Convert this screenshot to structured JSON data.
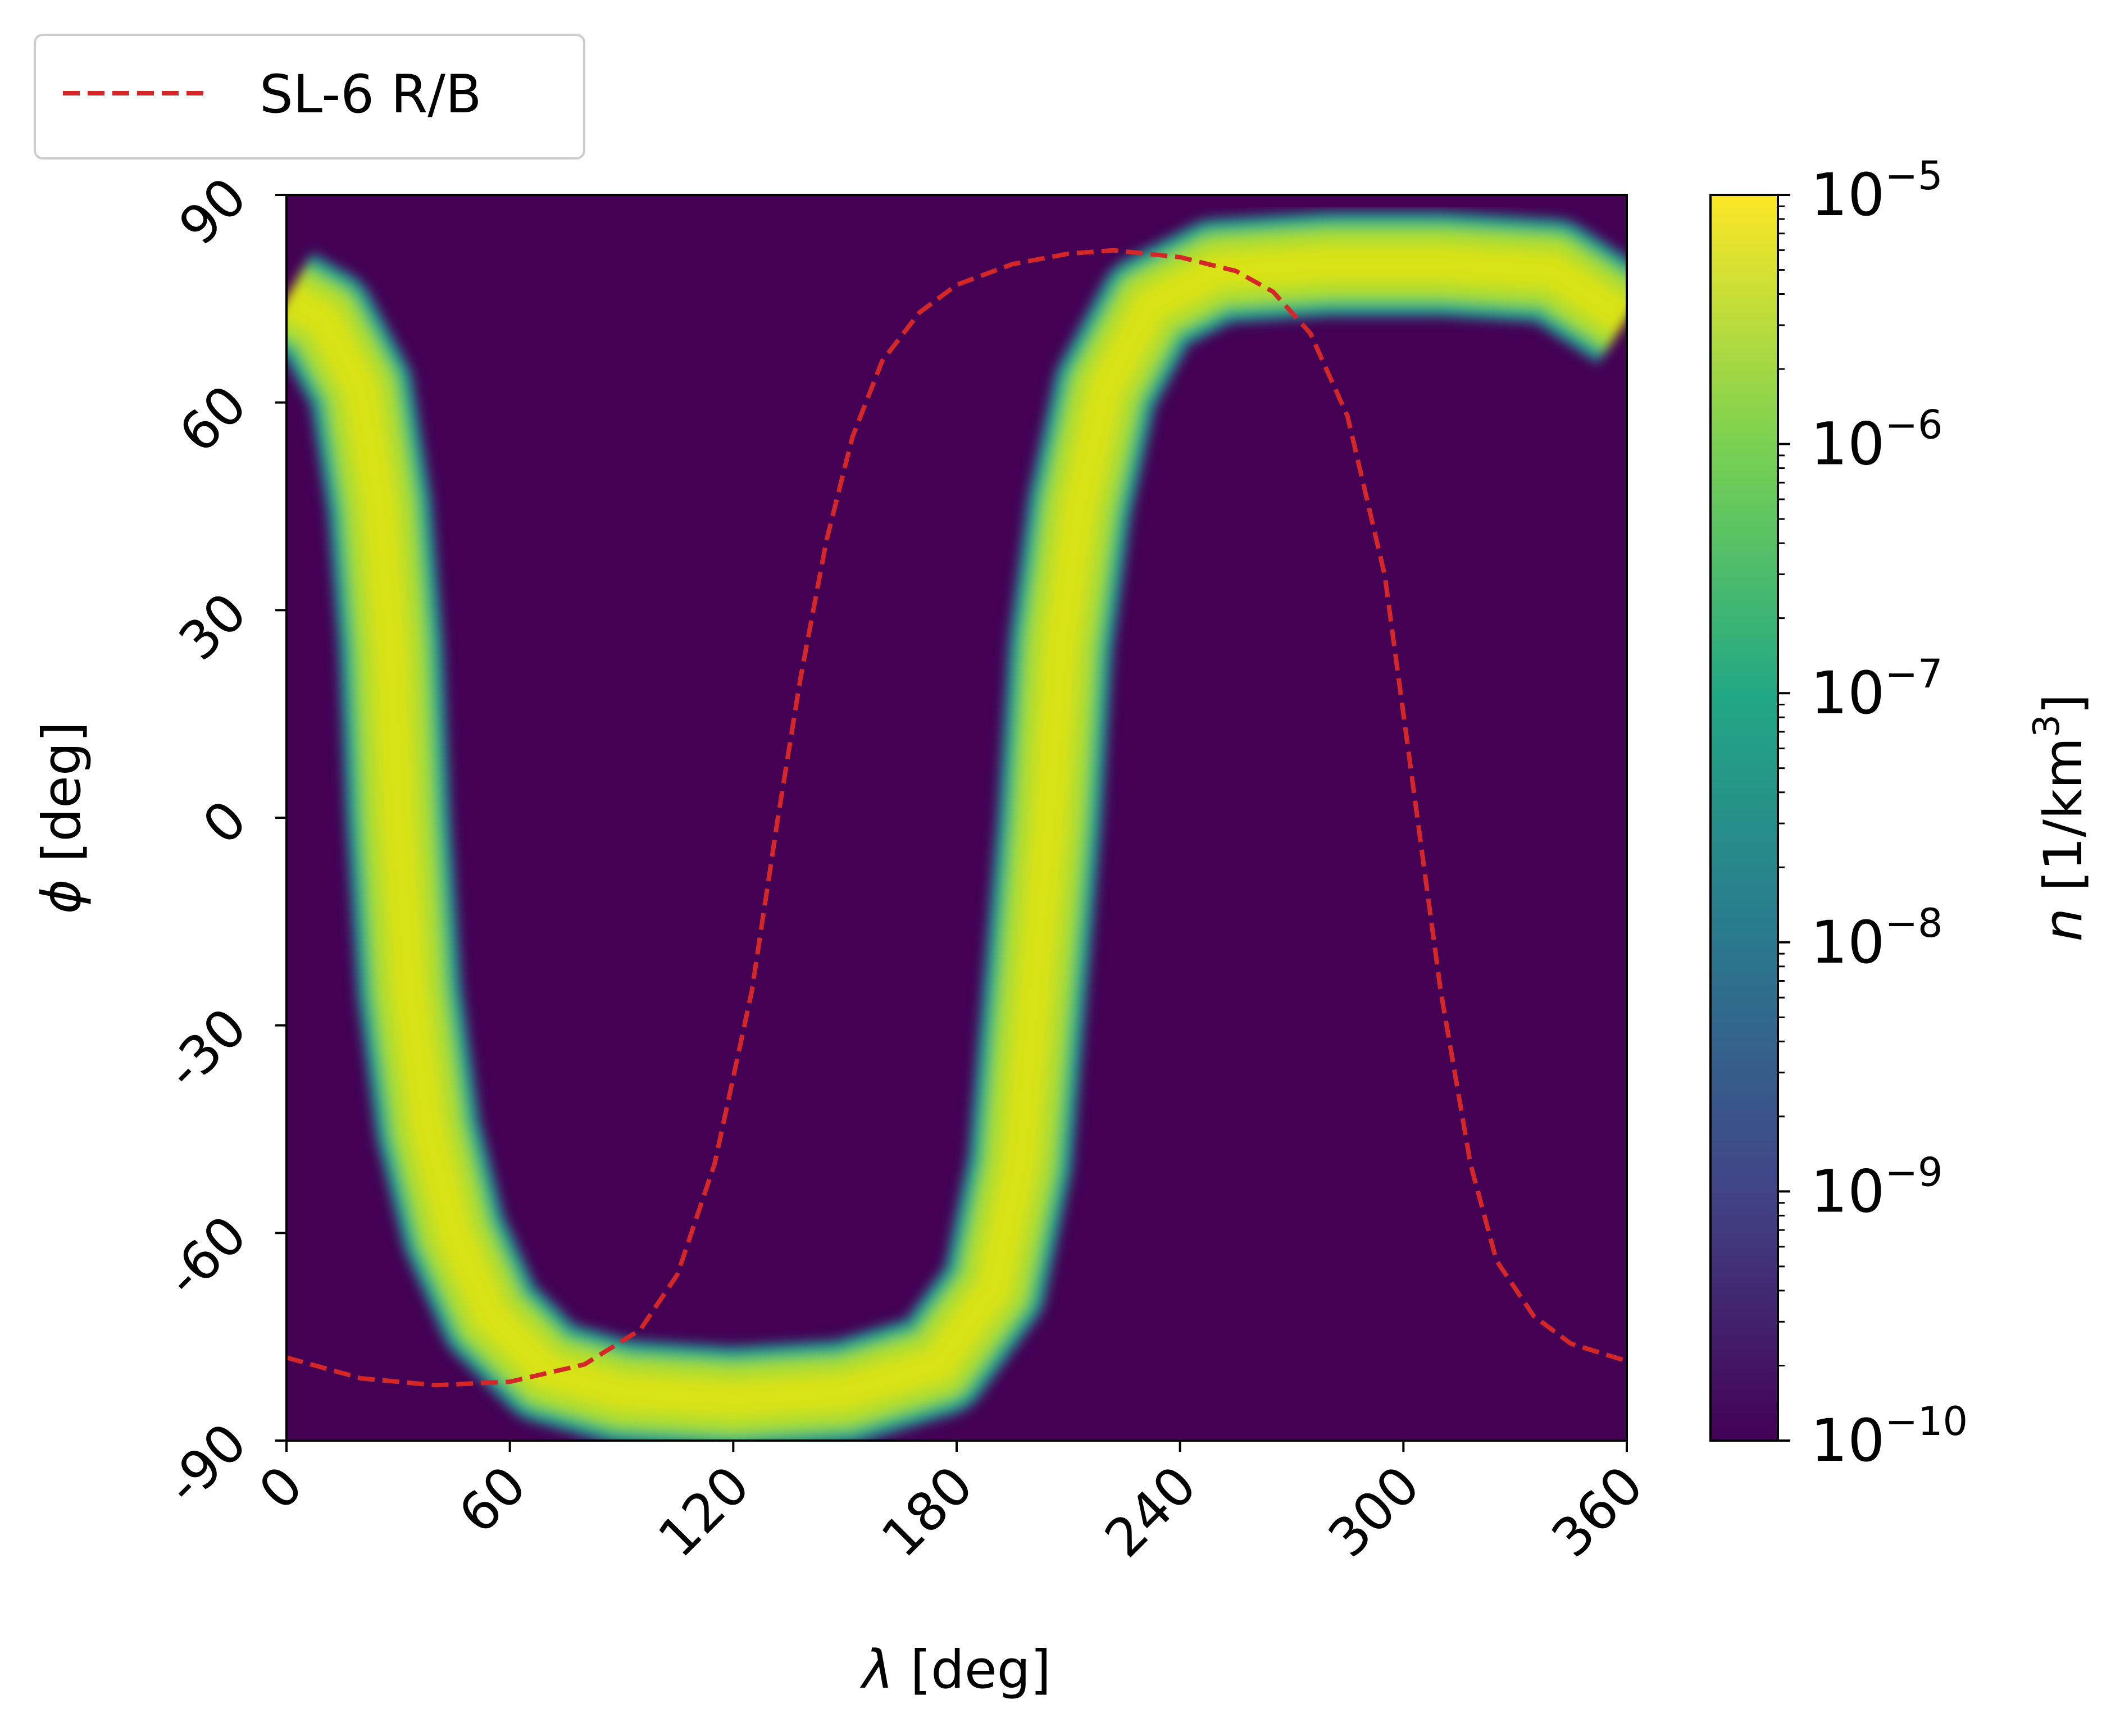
{
  "chart_data": {
    "type": "heatmap",
    "xlabel": {
      "symbol": "λ",
      "unit": "[deg]"
    },
    "ylabel": {
      "symbol": "ϕ",
      "unit": "[deg]"
    },
    "xlim": [
      0,
      360
    ],
    "ylim": [
      -90,
      90
    ],
    "xticks": [
      0,
      60,
      120,
      180,
      240,
      300,
      360
    ],
    "xtick_labels": [
      "0",
      "60",
      "120",
      "180",
      "240",
      "300",
      "360"
    ],
    "yticks": [
      -90,
      -60,
      -30,
      0,
      30,
      60,
      90
    ],
    "ytick_labels": [
      "-90",
      "-60",
      "-30",
      "0",
      "30",
      "60",
      "90"
    ],
    "grid": false,
    "colormap": "viridis",
    "background_value": 1e-10,
    "colorbar": {
      "label": {
        "symbol": "n",
        "unit": "[1/km",
        "unit_exp": "3",
        "unit_close": "]"
      },
      "scale": "log",
      "range": [
        1e-10,
        1e-05
      ],
      "ticks": [
        {
          "base": "10",
          "exp": "−10",
          "value": 1e-10
        },
        {
          "base": "10",
          "exp": "−9",
          "value": 1e-09
        },
        {
          "base": "10",
          "exp": "−8",
          "value": 1e-08
        },
        {
          "base": "10",
          "exp": "−7",
          "value": 1e-07
        },
        {
          "base": "10",
          "exp": "−6",
          "value": 1e-06
        },
        {
          "base": "10",
          "exp": "−5",
          "value": 1e-05
        }
      ]
    },
    "density_band": {
      "peak_value": 1e-05,
      "edge_value": 1e-08,
      "path": [
        [
          0,
          75
        ],
        [
          10,
          72
        ],
        [
          20,
          62
        ],
        [
          25,
          45
        ],
        [
          28,
          25
        ],
        [
          30,
          0
        ],
        [
          33,
          -25
        ],
        [
          38,
          -45
        ],
        [
          45,
          -60
        ],
        [
          55,
          -72
        ],
        [
          70,
          -80
        ],
        [
          90,
          -83
        ],
        [
          120,
          -84
        ],
        [
          150,
          -83
        ],
        [
          175,
          -79
        ],
        [
          190,
          -68
        ],
        [
          197,
          -50
        ],
        [
          201,
          -25
        ],
        [
          205,
          0
        ],
        [
          208,
          25
        ],
        [
          213,
          45
        ],
        [
          220,
          62
        ],
        [
          232,
          74
        ],
        [
          250,
          79
        ],
        [
          280,
          80
        ],
        [
          310,
          80
        ],
        [
          340,
          79
        ],
        [
          360,
          72
        ]
      ]
    },
    "series": [
      {
        "name": "SL-6 R/B",
        "style": "dashed",
        "color": "#d62728",
        "x": [
          0,
          20,
          40,
          60,
          80,
          95,
          105,
          115,
          125,
          132,
          138,
          145,
          152,
          160,
          170,
          180,
          195,
          210,
          222,
          240,
          255,
          265,
          275,
          285,
          295,
          300,
          305,
          310,
          318,
          325,
          335,
          345,
          360
        ],
        "y": [
          -78,
          -81,
          -82,
          -81.5,
          -79,
          -74,
          -66,
          -50,
          -25,
          0,
          20,
          40,
          55,
          66,
          73,
          77,
          80,
          81.5,
          82,
          81,
          79,
          76,
          70,
          58,
          35,
          15,
          -5,
          -25,
          -50,
          -64,
          -72,
          -76,
          -78.5
        ]
      }
    ],
    "legend": {
      "position": "top-left, outside the axes",
      "entries": [
        "SL-6 R/B"
      ]
    }
  }
}
